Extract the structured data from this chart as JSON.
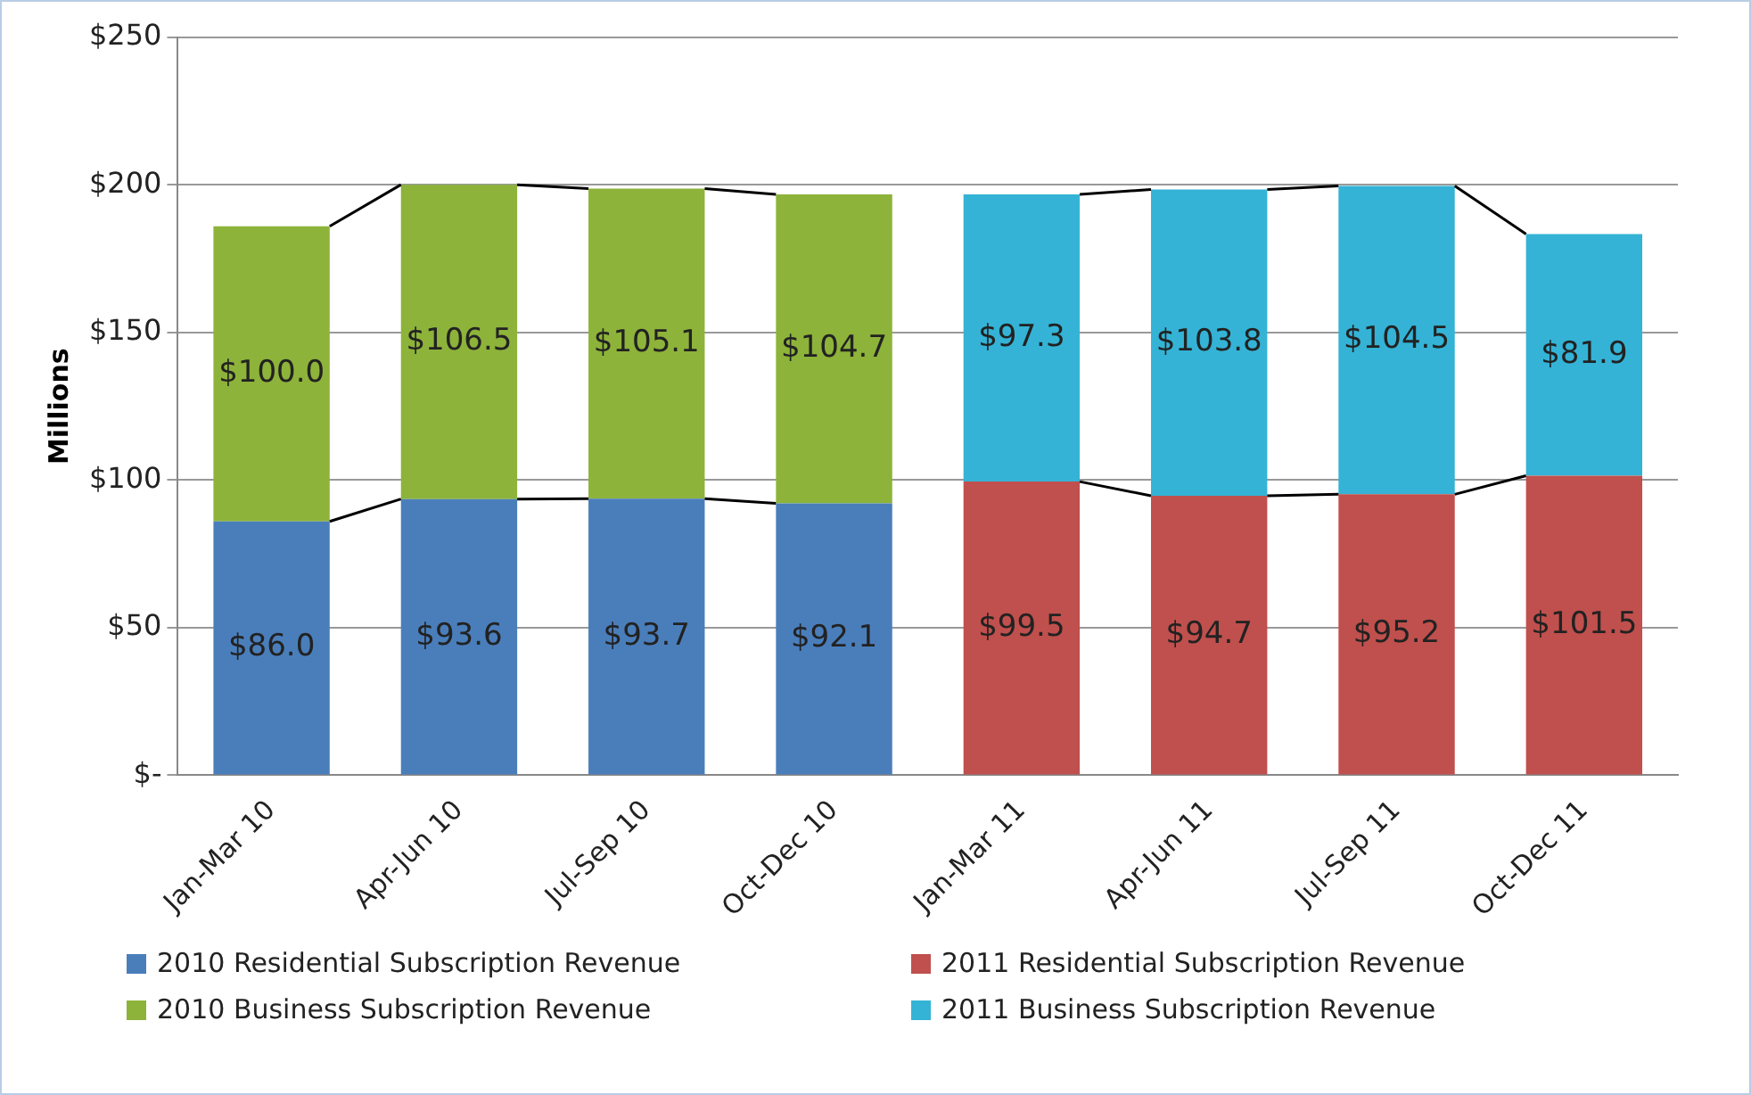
{
  "chart_data": {
    "type": "bar",
    "stacked": true,
    "ylabel": "Millions",
    "categories": [
      "Jan-Mar 10",
      "Apr-Jun 10",
      "Jul-Sep 10",
      "Oct-Dec 10",
      "Jan-Mar 11",
      "Apr-Jun 11",
      "Jul-Sep 11",
      "Oct-Dec 11"
    ],
    "series": [
      {
        "name": "2010 Residential Subscription Revenue",
        "color": "#4a7ebb",
        "values": [
          86.0,
          93.6,
          93.7,
          92.1,
          null,
          null,
          null,
          null
        ],
        "value_labels": [
          "$86.0",
          "$93.6",
          "$93.7",
          "$92.1",
          null,
          null,
          null,
          null
        ]
      },
      {
        "name": "2011 Residential Subscription Revenue",
        "color": "#c0504d",
        "values": [
          null,
          null,
          null,
          null,
          99.5,
          94.7,
          95.2,
          101.5
        ],
        "value_labels": [
          null,
          null,
          null,
          null,
          "$99.5",
          "$94.7",
          "$95.2",
          "$101.5"
        ]
      },
      {
        "name": "2010 Business Subscription Revenue",
        "color": "#8db33a",
        "values": [
          100.0,
          106.5,
          105.1,
          104.7,
          null,
          null,
          null,
          null
        ],
        "value_labels": [
          "$100.0",
          "$106.5",
          "$105.1",
          "$104.7",
          null,
          null,
          null,
          null
        ]
      },
      {
        "name": "2011 Business Subscription Revenue",
        "color": "#34b3d6",
        "values": [
          null,
          null,
          null,
          null,
          97.3,
          103.8,
          104.5,
          81.9
        ],
        "value_labels": [
          null,
          null,
          null,
          null,
          "$97.3",
          "$103.8",
          "$104.5",
          "$81.9"
        ]
      }
    ],
    "ylim": [
      0,
      250
    ],
    "yticks": [
      {
        "value": 0,
        "label": "$-"
      },
      {
        "value": 50,
        "label": "$50"
      },
      {
        "value": 100,
        "label": "$100"
      },
      {
        "value": 150,
        "label": "$150"
      },
      {
        "value": 200,
        "label": "$200"
      },
      {
        "value": 250,
        "label": "$250"
      }
    ],
    "grid": "y",
    "legend": "bottom"
  }
}
